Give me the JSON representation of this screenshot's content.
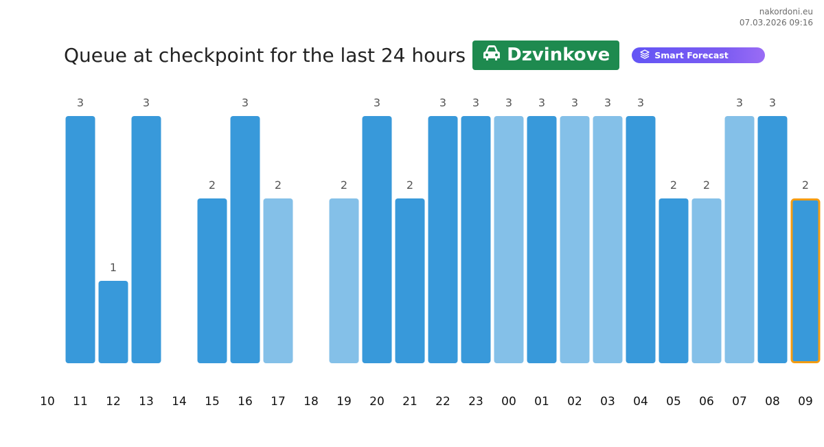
{
  "site": {
    "name": "nakordoni.eu",
    "datetime": "07.03.2026 09:16"
  },
  "header": {
    "title": "Queue at checkpoint for the last 24 hours",
    "checkpoint": "Dzvinkove",
    "checkpoint_icon": "car-icon",
    "forecast_label": "Smart Forecast",
    "forecast_icon": "layers-icon"
  },
  "colors": {
    "bar_dark": "#3899da",
    "bar_light": "#84c0e8",
    "highlight_border": "#f39c12",
    "badge": "#1e8a4f",
    "forecast": "#6b57f2"
  },
  "chart_data": {
    "type": "bar",
    "categories": [
      "10",
      "11",
      "12",
      "13",
      "14",
      "15",
      "16",
      "17",
      "18",
      "19",
      "20",
      "21",
      "22",
      "23",
      "00",
      "01",
      "02",
      "03",
      "04",
      "05",
      "06",
      "07",
      "08",
      "09"
    ],
    "values": [
      null,
      3,
      1,
      3,
      null,
      2,
      3,
      2,
      null,
      2,
      3,
      2,
      3,
      3,
      3,
      3,
      3,
      3,
      3,
      2,
      2,
      3,
      3,
      2
    ],
    "shade": [
      "",
      "dark",
      "dark",
      "dark",
      "",
      "dark",
      "dark",
      "light",
      "",
      "light",
      "dark",
      "dark",
      "dark",
      "dark",
      "light",
      "dark",
      "light",
      "light",
      "dark",
      "dark",
      "light",
      "light",
      "dark",
      "dark"
    ],
    "highlighted": "09",
    "ylim": [
      0,
      3
    ],
    "title": "",
    "xlabel": "",
    "ylabel": "",
    "grid": false
  }
}
